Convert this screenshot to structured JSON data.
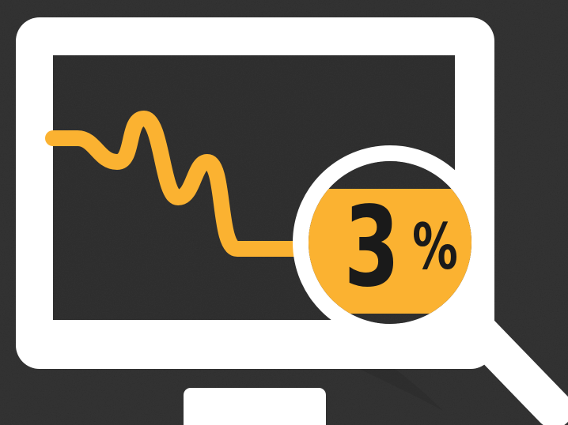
{
  "badge": {
    "number": "3",
    "percent": "%"
  },
  "colors": {
    "background": "#1d1d1d",
    "background_texture": "#3a3a3a",
    "monitor": "#ffffff",
    "screen": "#202020",
    "line": "#fbb231",
    "badge_fill": "#fbb231",
    "badge_text": "#1a1a1a"
  },
  "icons": {
    "monitor": "monitor-icon",
    "trend_line": "declining-trend-line",
    "magnifier": "magnifying-glass-icon"
  }
}
